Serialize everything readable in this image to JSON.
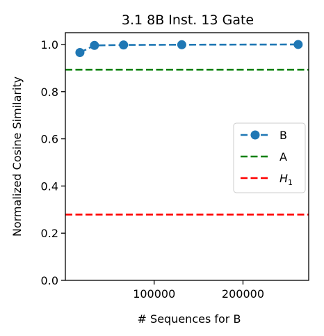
{
  "chart_data": {
    "type": "line",
    "title": "3.1 8B Inst. 13 Gate",
    "xlabel": "# Sequences for B",
    "ylabel": "Normalized Cosine Similarity",
    "xlim": [
      0,
      274000
    ],
    "ylim": [
      0.0,
      1.05
    ],
    "xticks": [
      100000,
      200000
    ],
    "xtick_labels": [
      "100000",
      "200000"
    ],
    "yticks": [
      0.0,
      0.2,
      0.4,
      0.6,
      0.8,
      1.0
    ],
    "ytick_labels": [
      "0.0",
      "0.2",
      "0.4",
      "0.6",
      "0.8",
      "1.0"
    ],
    "grid": false,
    "legend_position": "center-right",
    "series": [
      {
        "name": "B",
        "style": "dashed-line-with-markers",
        "color": "#1f77b4",
        "x": [
          16384,
          32768,
          65536,
          131072,
          262144
        ],
        "y": [
          0.966,
          0.996,
          0.998,
          0.999,
          1.0
        ]
      },
      {
        "name": "A",
        "style": "dashed-horizontal",
        "color": "#008000",
        "y": 0.893
      },
      {
        "name": "H1",
        "label_base": "H",
        "label_sub": "1",
        "style": "dashed-horizontal",
        "color": "#ff0000",
        "y": 0.279
      }
    ]
  }
}
